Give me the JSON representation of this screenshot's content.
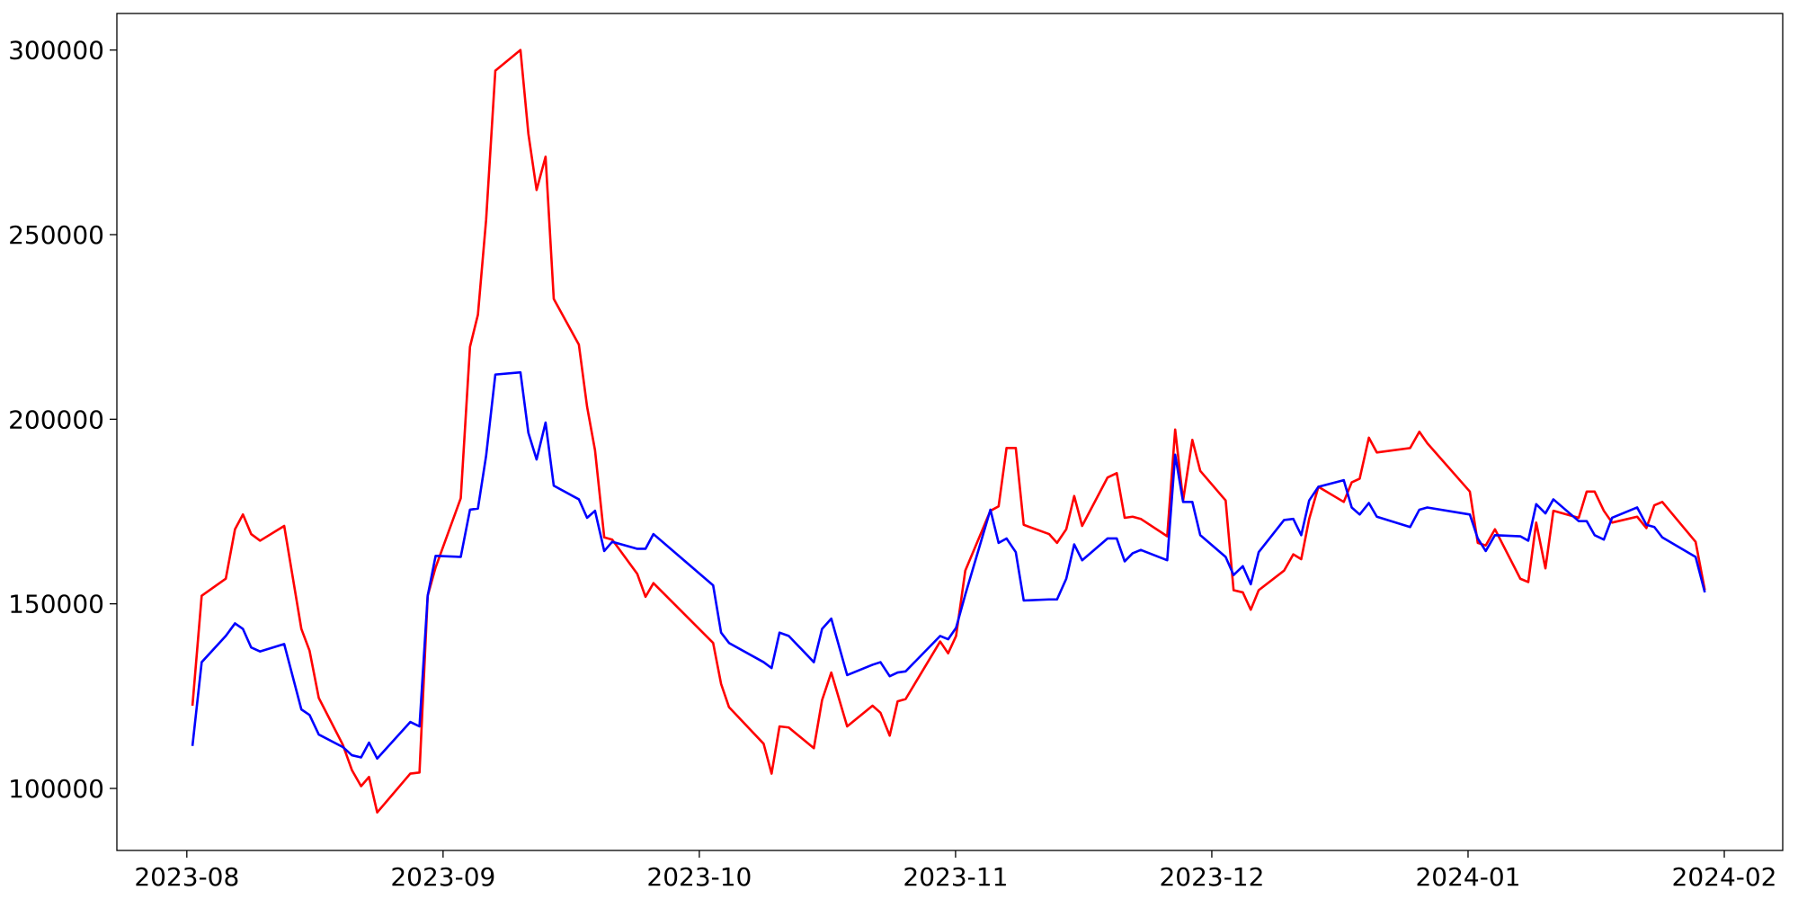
{
  "chart_data": {
    "type": "line",
    "x": [
      0.022,
      0.058,
      0.152,
      0.188,
      0.219,
      0.251,
      0.286,
      0.38,
      0.447,
      0.479,
      0.515,
      0.609,
      0.644,
      0.68,
      0.711,
      0.743,
      0.872,
      0.908,
      0.94,
      0.971,
      1.069,
      1.105,
      1.136,
      1.168,
      1.204,
      1.302,
      1.333,
      1.365,
      1.4,
      1.432,
      1.53,
      1.562,
      1.593,
      1.629,
      1.66,
      1.758,
      1.79,
      1.821,
      2.054,
      2.085,
      2.116,
      2.251,
      2.282,
      2.313,
      2.349,
      2.447,
      2.479,
      2.515,
      2.577,
      2.676,
      2.707,
      2.743,
      2.774,
      2.805,
      2.94,
      2.971,
      3.002,
      3.038,
      3.136,
      3.168,
      3.199,
      3.235,
      3.266,
      3.365,
      3.396,
      3.432,
      3.463,
      3.494,
      3.593,
      3.629,
      3.66,
      3.691,
      3.723,
      3.826,
      3.857,
      3.888,
      3.924,
      3.955,
      4.054,
      4.085,
      4.121,
      4.152,
      4.183,
      4.282,
      4.318,
      4.349,
      4.38,
      4.416,
      4.515,
      4.546,
      4.577,
      4.613,
      4.644,
      4.774,
      4.81,
      4.841,
      5.007,
      5.038,
      5.069,
      5.105,
      5.204,
      5.235,
      5.266,
      5.302,
      5.333,
      5.432,
      5.463,
      5.494,
      5.53,
      5.562,
      5.66,
      5.696,
      5.727,
      5.758,
      5.888,
      5.924
    ],
    "series": [
      {
        "color": "#ff0000",
        "values": [
          122400,
          152200,
          156800,
          170200,
          174200,
          168900,
          167100,
          171100,
          143200,
          137300,
          124500,
          111800,
          105000,
          100600,
          103100,
          93500,
          104000,
          104300,
          152200,
          159900,
          178600,
          219600,
          228300,
          254000,
          294400,
          300000,
          277300,
          262100,
          271100,
          232600,
          220200,
          203400,
          191600,
          168000,
          167400,
          158100,
          151900,
          155600,
          139400,
          128300,
          122000,
          112100,
          104000,
          116800,
          116500,
          110900,
          123900,
          131400,
          116800,
          122400,
          120500,
          114300,
          123600,
          124200,
          139800,
          136600,
          141300,
          159000,
          175200,
          176400,
          192200,
          192200,
          171400,
          168900,
          166500,
          170200,
          179200,
          171100,
          184200,
          185400,
          173300,
          173600,
          173000,
          168300,
          197200,
          178000,
          194400,
          186000,
          178000,
          153700,
          153100,
          148400,
          153700,
          159000,
          163400,
          162100,
          173000,
          181700,
          177600,
          182900,
          183900,
          195000,
          191000,
          192200,
          196600,
          193500,
          180400,
          166500,
          165800,
          170200,
          156800,
          155900,
          172000,
          159600,
          175200,
          173300,
          180400,
          180400,
          175200,
          172000,
          173600,
          170500,
          176700,
          177600,
          166800,
          153700
        ]
      },
      {
        "color": "#0000ff",
        "values": [
          111500,
          134200,
          141300,
          144700,
          143200,
          138200,
          137100,
          139100,
          121400,
          119900,
          114600,
          111200,
          109000,
          108400,
          112400,
          108100,
          118000,
          116800,
          152200,
          163000,
          162700,
          175500,
          175800,
          190100,
          212100,
          212700,
          196300,
          189100,
          199100,
          182000,
          178300,
          173300,
          175200,
          164300,
          166800,
          164900,
          164900,
          168900,
          155000,
          142200,
          139400,
          134200,
          132600,
          142200,
          141300,
          134200,
          143200,
          146000,
          130700,
          133500,
          134200,
          130400,
          131400,
          131700,
          141300,
          140400,
          143500,
          152500,
          175500,
          166500,
          167700,
          164000,
          150900,
          151200,
          151200,
          156800,
          166100,
          161800,
          167700,
          167700,
          161500,
          163700,
          164600,
          161800,
          190400,
          177600,
          177600,
          168600,
          162700,
          157800,
          160200,
          155300,
          164000,
          172700,
          173000,
          168600,
          178000,
          181700,
          183500,
          176100,
          174200,
          177300,
          173600,
          170800,
          175500,
          176100,
          174200,
          167700,
          164300,
          168600,
          168300,
          167100,
          177000,
          174500,
          178300,
          172400,
          172400,
          168600,
          167400,
          173300,
          176100,
          171400,
          170800,
          168000,
          162700,
          153100
        ]
      }
    ],
    "xlim": [
      -0.273,
      6.228
    ],
    "xticks": [
      {
        "value": 0,
        "label": "2023-08"
      },
      {
        "value": 1,
        "label": "2023-09"
      },
      {
        "value": 2,
        "label": "2023-10"
      },
      {
        "value": 3,
        "label": "2023-11"
      },
      {
        "value": 4,
        "label": "2023-12"
      },
      {
        "value": 5,
        "label": "2024-01"
      },
      {
        "value": 6,
        "label": "2024-02"
      }
    ],
    "ylim": [
      83200,
      309900
    ],
    "yticks": [
      100000,
      150000,
      200000,
      250000,
      300000
    ],
    "grid": false
  }
}
